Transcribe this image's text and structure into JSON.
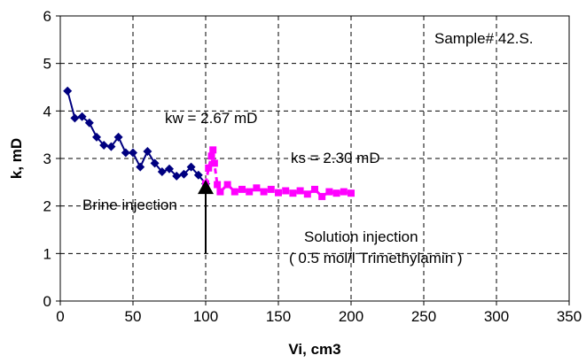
{
  "chart_data": {
    "type": "line",
    "title": "",
    "xlabel": "Vi, cm3",
    "ylabel": "k, mD",
    "xlim": [
      0,
      350
    ],
    "ylim": [
      0,
      6
    ],
    "xticks": [
      0,
      50,
      100,
      150,
      200,
      250,
      300,
      350
    ],
    "yticks": [
      0,
      1,
      2,
      3,
      4,
      5,
      6
    ],
    "grid": true,
    "series": [
      {
        "color": "#000080",
        "marker": "diamond",
        "line": "solid",
        "x": [
          5,
          10,
          15,
          20,
          25,
          30,
          35,
          40,
          45,
          50,
          55,
          60,
          65,
          70,
          75,
          80,
          85,
          90,
          95,
          100
        ],
        "y": [
          4.42,
          3.85,
          3.88,
          3.75,
          3.45,
          3.28,
          3.25,
          3.45,
          3.12,
          3.12,
          2.82,
          3.15,
          2.9,
          2.72,
          2.78,
          2.63,
          2.67,
          2.82,
          2.65,
          2.47
        ]
      },
      {
        "color": "#ff00ff",
        "marker": "square",
        "line": "dashed",
        "x": [
          100,
          102,
          104,
          105,
          106,
          108,
          110,
          115,
          120,
          125,
          130,
          135,
          140,
          145,
          150,
          155,
          160,
          165,
          170,
          175,
          180,
          185,
          190,
          195,
          200
        ],
        "y": [
          2.47,
          2.8,
          3.05,
          3.18,
          2.9,
          2.45,
          2.3,
          2.45,
          2.3,
          2.35,
          2.3,
          2.38,
          2.3,
          2.35,
          2.28,
          2.32,
          2.27,
          2.32,
          2.25,
          2.35,
          2.2,
          2.3,
          2.27,
          2.3,
          2.27
        ]
      }
    ],
    "annotations": {
      "sample": "Sample# 42.S.",
      "kw": "kw = 2.67 mD",
      "ks": "ks = 2.30 mD",
      "brine": "Brine injection",
      "solution_line1": "Solution injection",
      "solution_line2": "( 0.5 mol/l Trimethylamin )"
    },
    "arrow": {
      "x": 100,
      "y_from": 1.0,
      "y_to": 2.55
    }
  }
}
